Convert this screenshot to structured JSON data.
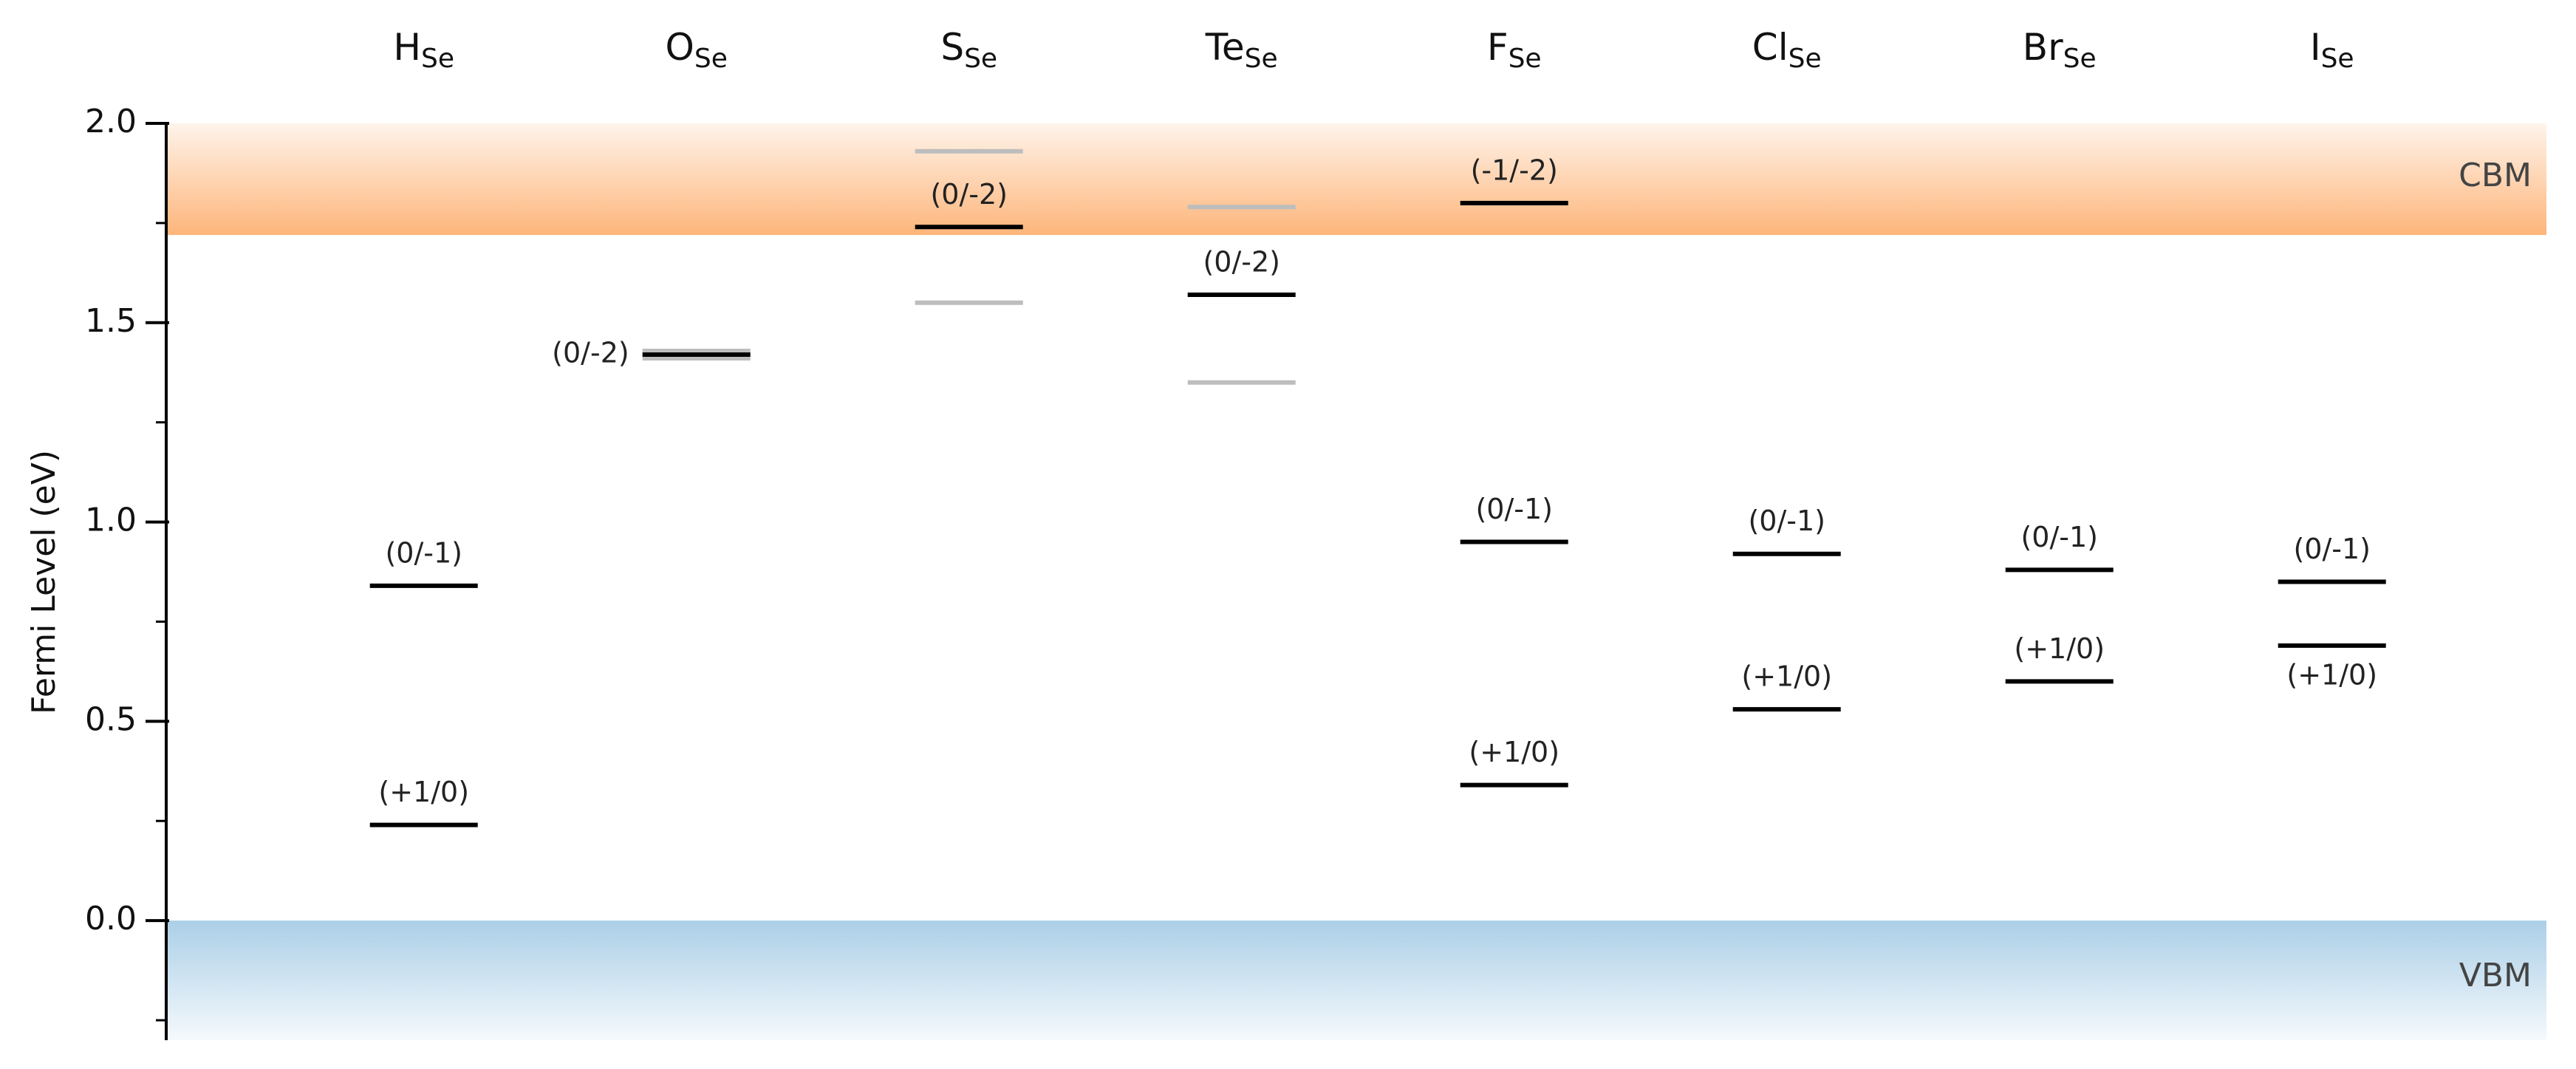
{
  "chart_data": {
    "type": "transition_levels",
    "y_axis_label": "Fermi Level (eV)",
    "ylim": [
      -0.3,
      2.0
    ],
    "yticks": [
      {
        "value": 0,
        "label": "0.0"
      },
      {
        "value": 0.5,
        "label": "0.5"
      },
      {
        "value": 1,
        "label": "1.0"
      },
      {
        "value": 1.5,
        "label": "1.5"
      },
      {
        "value": 2,
        "label": "2.0"
      }
    ],
    "minor_yticks": [
      -0.25,
      0.25,
      0.75,
      1.25,
      1.75
    ],
    "level_color": "#000000",
    "faint_color": "#bdbdbd",
    "cbm": {
      "label": "CBM",
      "value": 1.72,
      "color": "#fdb57a"
    },
    "vbm": {
      "label": "VBM",
      "value": 0,
      "color": "#abcfe7"
    },
    "categories": [
      {
        "name": "H",
        "subscript": "Se",
        "levels": [
          {
            "label": "(0/-1)",
            "value": 0.84,
            "label_position": "above"
          },
          {
            "label": "(+1/0)",
            "value": 0.24,
            "label_position": "above"
          }
        ],
        "faint_levels": []
      },
      {
        "name": "O",
        "subscript": "Se",
        "levels": [
          {
            "label": "(0/-2)",
            "value": 1.42,
            "label_position": "left",
            "shadow": true
          }
        ],
        "faint_levels": []
      },
      {
        "name": "S",
        "subscript": "Se",
        "levels": [
          {
            "label": "(0/-2)",
            "value": 1.74,
            "label_position": "above"
          }
        ],
        "faint_levels": [
          1.93,
          1.55
        ]
      },
      {
        "name": "Te",
        "subscript": "Se",
        "levels": [
          {
            "label": "(0/-2)",
            "value": 1.57,
            "label_position": "above"
          }
        ],
        "faint_levels": [
          1.79,
          1.35
        ]
      },
      {
        "name": "F",
        "subscript": "Se",
        "levels": [
          {
            "label": "(-1/-2)",
            "value": 1.8,
            "label_position": "above"
          },
          {
            "label": "(0/-1)",
            "value": 0.95,
            "label_position": "above"
          },
          {
            "label": "(+1/0)",
            "value": 0.34,
            "label_position": "above"
          }
        ],
        "faint_levels": []
      },
      {
        "name": "Cl",
        "subscript": "Se",
        "levels": [
          {
            "label": "(0/-1)",
            "value": 0.92,
            "label_position": "above"
          },
          {
            "label": "(+1/0)",
            "value": 0.53,
            "label_position": "above"
          }
        ],
        "faint_levels": []
      },
      {
        "name": "Br",
        "subscript": "Se",
        "levels": [
          {
            "label": "(0/-1)",
            "value": 0.88,
            "label_position": "above"
          },
          {
            "label": "(+1/0)",
            "value": 0.6,
            "label_position": "above"
          }
        ],
        "faint_levels": []
      },
      {
        "name": "I",
        "subscript": "Se",
        "levels": [
          {
            "label": "(0/-1)",
            "value": 0.85,
            "label_position": "above"
          },
          {
            "label": "(+1/0)",
            "value": 0.69,
            "label_position": "below"
          }
        ],
        "faint_levels": []
      }
    ]
  }
}
